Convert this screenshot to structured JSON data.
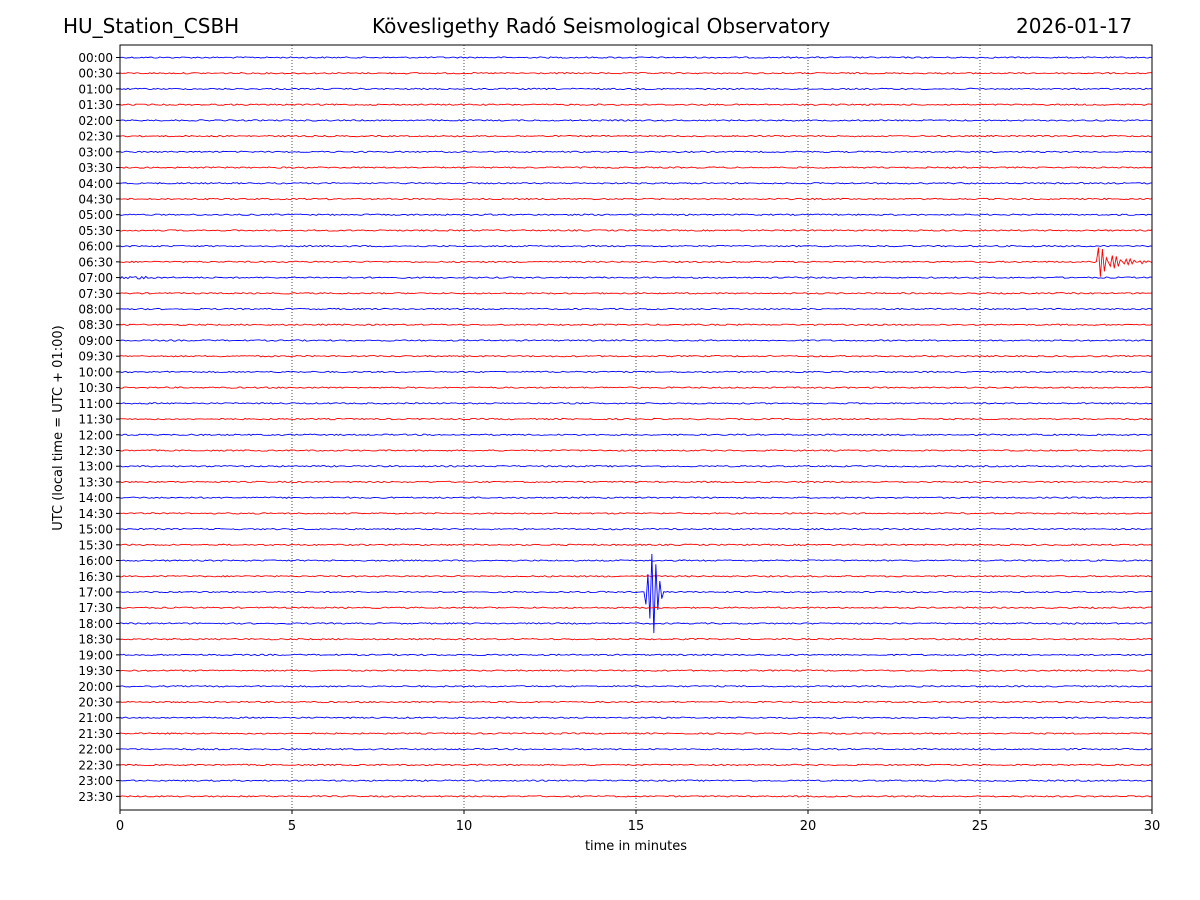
{
  "header": {
    "station": "HU_Station_CSBH",
    "observatory": "Kövesligethy Radó Seismological Observatory",
    "date": "2026-01-17"
  },
  "colors": {
    "even": "#0000ff",
    "odd": "#ff0000",
    "grid": "#000000"
  },
  "chart_data": {
    "type": "line",
    "title": "Kövesligethy Radó Seismological Observatory",
    "xlabel": "time in minutes",
    "ylabel": "UTC (local time = UTC + 01:00)",
    "xlim": [
      0,
      30
    ],
    "x_ticks": [
      "0",
      "5",
      "10",
      "15",
      "20",
      "25",
      "30"
    ],
    "x_tick_values": [
      0,
      5,
      10,
      15,
      20,
      25,
      30
    ],
    "vertical_gridlines": [
      5,
      10,
      15,
      20,
      25
    ],
    "rows": [
      "00:00",
      "00:30",
      "01:00",
      "01:30",
      "02:00",
      "02:30",
      "03:00",
      "03:30",
      "04:00",
      "04:30",
      "05:00",
      "05:30",
      "06:00",
      "06:30",
      "07:00",
      "07:30",
      "08:00",
      "08:30",
      "09:00",
      "09:30",
      "10:00",
      "10:30",
      "11:00",
      "11:30",
      "12:00",
      "12:30",
      "13:00",
      "13:30",
      "14:00",
      "14:30",
      "15:00",
      "15:30",
      "16:00",
      "16:30",
      "17:00",
      "17:30",
      "18:00",
      "18:30",
      "19:00",
      "19:30",
      "20:00",
      "20:30",
      "21:00",
      "21:30",
      "22:00",
      "22:30",
      "23:00",
      "23:30"
    ],
    "events": [
      {
        "row": "06:30",
        "start_minute": 28.4,
        "peak_amplitude_rows": 1.2,
        "type": "decaying"
      },
      {
        "row": "17:00",
        "start_minute": 15.3,
        "peak_amplitude_rows": 3.0,
        "type": "burst"
      }
    ]
  }
}
